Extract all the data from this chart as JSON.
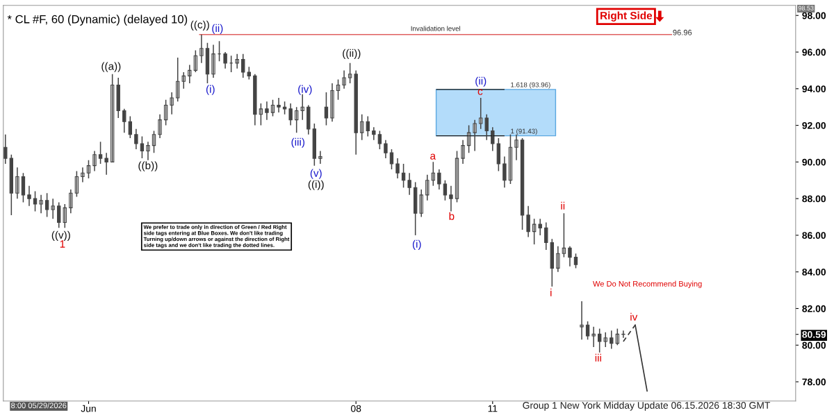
{
  "chart_data": {
    "type": "candlestick",
    "title": "* CL #F, 60 (Dynamic) (delayed 10)",
    "color": "#444444",
    "categories": [
      null,
      null,
      null,
      null,
      null,
      null,
      null,
      null,
      null,
      null,
      null,
      null,
      null,
      null,
      "Jun",
      null,
      null,
      null,
      null,
      null,
      null,
      null,
      null,
      null,
      null,
      null,
      null,
      null,
      null,
      null,
      null,
      null,
      null,
      null,
      null,
      null,
      null,
      null,
      null,
      null,
      null,
      null,
      null,
      null,
      null,
      null,
      null,
      null,
      null,
      null,
      null,
      null,
      null,
      null,
      null,
      null,
      null,
      null,
      null,
      "08",
      null,
      null,
      null,
      null,
      null,
      null,
      null,
      null,
      null,
      null,
      null,
      null,
      null,
      null,
      null,
      null,
      null,
      null,
      null,
      null,
      null,
      null,
      "11",
      null,
      null,
      null,
      null,
      null,
      null,
      null,
      null,
      null,
      null,
      null,
      null,
      null,
      null,
      null,
      null,
      null,
      null,
      null,
      null,
      null,
      null,
      null,
      null,
      null,
      null,
      null,
      null,
      null,
      null,
      null,
      null,
      null,
      null,
      null,
      null,
      null,
      null,
      null,
      null,
      null,
      null,
      null,
      null,
      null,
      null,
      null,
      null,
      null,
      null,
      null
    ],
    "ohlc": [
      [
        90.8,
        91.5,
        89.9,
        90.2
      ],
      [
        90.2,
        90.4,
        87.1,
        88.3
      ],
      [
        88.3,
        89.7,
        88.0,
        89.2
      ],
      [
        89.2,
        89.4,
        87.8,
        88.2
      ],
      [
        88.2,
        88.7,
        87.6,
        88.0
      ],
      [
        88.0,
        88.4,
        87.3,
        87.7
      ],
      [
        87.7,
        88.2,
        87.2,
        87.9
      ],
      [
        87.9,
        88.3,
        87.0,
        87.4
      ],
      [
        87.4,
        88.0,
        86.9,
        87.6
      ],
      [
        87.6,
        87.8,
        86.4,
        86.7
      ],
      [
        86.7,
        87.7,
        86.4,
        87.5
      ],
      [
        87.5,
        88.5,
        87.2,
        88.3
      ],
      [
        88.3,
        89.5,
        88.1,
        89.2
      ],
      [
        89.2,
        89.7,
        88.9,
        89.4
      ],
      [
        89.4,
        90.1,
        89.1,
        89.8
      ],
      [
        89.8,
        90.6,
        89.5,
        90.4
      ],
      [
        90.4,
        91.1,
        89.9,
        90.2
      ],
      [
        90.2,
        90.5,
        89.3,
        90.0
      ],
      [
        90.0,
        94.8,
        90.0,
        94.2
      ],
      [
        94.2,
        94.6,
        92.4,
        92.8
      ],
      [
        92.8,
        92.9,
        91.6,
        92.2
      ],
      [
        92.2,
        92.5,
        91.3,
        91.5
      ],
      [
        91.5,
        91.8,
        90.7,
        91.0
      ],
      [
        91.0,
        91.4,
        90.2,
        90.6
      ],
      [
        90.6,
        91.1,
        90.1,
        90.9
      ],
      [
        90.9,
        91.7,
        90.5,
        91.5
      ],
      [
        91.5,
        92.6,
        91.3,
        92.3
      ],
      [
        92.3,
        93.4,
        92.0,
        93.1
      ],
      [
        93.1,
        93.8,
        92.6,
        93.5
      ],
      [
        93.5,
        95.7,
        93.3,
        94.4
      ],
      [
        94.4,
        94.9,
        94.0,
        94.7
      ],
      [
        94.7,
        95.3,
        94.3,
        95.0
      ],
      [
        95.0,
        96.1,
        94.9,
        95.8
      ],
      [
        95.8,
        96.96,
        95.4,
        96.2
      ],
      [
        96.2,
        96.5,
        94.3,
        94.8
      ],
      [
        94.8,
        96.4,
        94.6,
        95.9
      ],
      [
        95.9,
        96.6,
        95.5,
        95.9
      ],
      [
        95.9,
        96.0,
        95.1,
        95.4
      ],
      [
        95.4,
        95.8,
        94.9,
        95.4
      ],
      [
        95.4,
        95.9,
        95.1,
        95.6
      ],
      [
        95.6,
        95.9,
        94.6,
        94.9
      ],
      [
        94.9,
        95.2,
        94.5,
        94.7
      ],
      [
        94.7,
        94.8,
        92.0,
        92.6
      ],
      [
        92.6,
        93.2,
        92.0,
        92.9
      ],
      [
        92.9,
        93.3,
        92.3,
        92.7
      ],
      [
        92.7,
        93.4,
        92.5,
        93.1
      ],
      [
        93.1,
        93.5,
        92.7,
        93.0
      ],
      [
        93.0,
        93.3,
        92.6,
        92.9
      ],
      [
        92.9,
        93.2,
        92.0,
        92.3
      ],
      [
        92.3,
        93.0,
        91.6,
        92.8
      ],
      [
        92.8,
        93.7,
        92.3,
        93.0
      ],
      [
        93.0,
        93.1,
        91.5,
        91.8
      ],
      [
        91.8,
        92.1,
        89.8,
        90.2
      ],
      [
        90.2,
        90.6,
        89.9,
        90.3
      ],
      [
        93.0,
        93.8,
        92.0,
        92.4
      ],
      [
        92.4,
        94.3,
        92.2,
        93.9
      ],
      [
        93.9,
        94.5,
        93.4,
        94.2
      ],
      [
        94.2,
        95.0,
        94.0,
        94.6
      ],
      [
        94.6,
        95.4,
        94.3,
        94.8
      ],
      [
        94.8,
        95.0,
        90.4,
        91.6
      ],
      [
        91.6,
        92.6,
        91.2,
        92.2
      ],
      [
        92.2,
        92.5,
        91.4,
        91.7
      ],
      [
        91.7,
        91.9,
        91.2,
        91.5
      ],
      [
        91.5,
        91.7,
        90.7,
        91.0
      ],
      [
        91.0,
        91.2,
        90.2,
        90.5
      ],
      [
        90.5,
        90.7,
        89.6,
        89.9
      ],
      [
        89.9,
        90.2,
        89.1,
        89.4
      ],
      [
        89.4,
        89.9,
        88.6,
        89.0
      ],
      [
        89.0,
        89.4,
        88.2,
        88.6
      ],
      [
        88.6,
        88.9,
        86.0,
        87.2
      ],
      [
        87.2,
        88.5,
        87.0,
        88.2
      ],
      [
        88.2,
        89.3,
        87.9,
        89.0
      ],
      [
        89.0,
        90.0,
        88.7,
        89.4
      ],
      [
        89.4,
        89.6,
        88.5,
        88.8
      ],
      [
        88.8,
        89.0,
        87.9,
        88.2
      ],
      [
        88.2,
        88.7,
        87.3,
        88.0
      ],
      [
        88.0,
        90.6,
        87.8,
        90.2
      ],
      [
        90.2,
        91.2,
        89.9,
        90.9
      ],
      [
        90.9,
        92.0,
        90.5,
        91.6
      ],
      [
        91.6,
        92.3,
        90.6,
        92.1
      ],
      [
        92.1,
        93.5,
        91.8,
        92.4
      ],
      [
        92.4,
        92.6,
        91.2,
        91.7
      ],
      [
        91.7,
        91.9,
        90.6,
        91.0
      ],
      [
        91.0,
        91.3,
        89.5,
        89.9
      ],
      [
        89.9,
        90.3,
        88.6,
        89.0
      ],
      [
        89.0,
        91.5,
        88.8,
        90.8
      ],
      [
        90.8,
        91.5,
        90.1,
        91.2
      ],
      [
        91.2,
        91.3,
        86.3,
        87.1
      ],
      [
        87.1,
        87.6,
        85.9,
        86.2
      ],
      [
        86.2,
        86.9,
        85.5,
        86.6
      ],
      [
        86.6,
        86.9,
        86.0,
        86.4
      ],
      [
        86.4,
        86.7,
        85.2,
        85.6
      ],
      [
        85.6,
        85.8,
        83.2,
        84.2
      ],
      [
        84.2,
        85.4,
        84.0,
        85.0
      ],
      [
        85.0,
        87.2,
        84.8,
        85.3
      ],
      [
        85.3,
        85.4,
        84.3,
        84.8
      ],
      [
        84.8,
        85.0,
        84.2,
        84.4
      ],
      [
        81.0,
        82.4,
        80.3,
        81.1
      ],
      [
        81.1,
        81.3,
        80.3,
        80.5
      ],
      [
        80.5,
        81.0,
        79.9,
        80.6
      ],
      [
        80.6,
        80.9,
        79.6,
        80.2
      ],
      [
        80.2,
        80.7,
        79.9,
        80.4
      ],
      [
        80.4,
        80.8,
        79.8,
        80.1
      ],
      [
        80.1,
        80.9,
        80.0,
        80.6
      ],
      [
        80.6,
        80.8,
        80.4,
        80.59
      ],
      null,
      null,
      null,
      null,
      null,
      null,
      null,
      null,
      null,
      null,
      null,
      null,
      null,
      null,
      null,
      null,
      null,
      null,
      null,
      null,
      null,
      null,
      null,
      null,
      null,
      null,
      null,
      null,
      null
    ],
    "series": [
      {
        "type": "line",
        "color": "#333333",
        "line_style": "dashed",
        "values": [
          null,
          null,
          null,
          null,
          null,
          null,
          null,
          null,
          null,
          null,
          null,
          null,
          null,
          null,
          null,
          null,
          null,
          null,
          null,
          null,
          null,
          null,
          null,
          null,
          null,
          null,
          null,
          null,
          null,
          null,
          null,
          null,
          null,
          null,
          null,
          null,
          null,
          null,
          null,
          null,
          null,
          null,
          null,
          null,
          null,
          null,
          null,
          null,
          null,
          null,
          null,
          null,
          null,
          null,
          null,
          null,
          null,
          null,
          null,
          null,
          null,
          null,
          null,
          null,
          null,
          null,
          null,
          null,
          null,
          null,
          null,
          null,
          null,
          null,
          null,
          null,
          null,
          null,
          null,
          null,
          null,
          null,
          null,
          null,
          null,
          null,
          null,
          null,
          null,
          null,
          null,
          null,
          null,
          null,
          null,
          null,
          null,
          null,
          null,
          null,
          null,
          null,
          null,
          null,
          80.2,
          null,
          81.1,
          null,
          null,
          null,
          null,
          null,
          null,
          null,
          null,
          null,
          null,
          null,
          null,
          null,
          null,
          null,
          null,
          null,
          null,
          null,
          null,
          null,
          null,
          null,
          null,
          null,
          null,
          null
        ]
      },
      {
        "type": "line",
        "color": "#333333",
        "line_style": "solid",
        "values": [
          null,
          null,
          null,
          null,
          null,
          null,
          null,
          null,
          null,
          null,
          null,
          null,
          null,
          null,
          null,
          null,
          null,
          null,
          null,
          null,
          null,
          null,
          null,
          null,
          null,
          null,
          null,
          null,
          null,
          null,
          null,
          null,
          null,
          null,
          null,
          null,
          null,
          null,
          null,
          null,
          null,
          null,
          null,
          null,
          null,
          null,
          null,
          null,
          null,
          null,
          null,
          null,
          null,
          null,
          null,
          null,
          null,
          null,
          null,
          null,
          null,
          null,
          null,
          null,
          null,
          null,
          null,
          null,
          null,
          null,
          null,
          null,
          null,
          null,
          null,
          null,
          null,
          null,
          null,
          null,
          null,
          null,
          null,
          null,
          null,
          null,
          null,
          null,
          null,
          null,
          null,
          null,
          null,
          null,
          null,
          null,
          null,
          null,
          null,
          null,
          null,
          null,
          null,
          null,
          null,
          null,
          81.1,
          null,
          77.5,
          null,
          null,
          null,
          null,
          null,
          null,
          null,
          null,
          null,
          null,
          null,
          null,
          null,
          null,
          null,
          null,
          null,
          null,
          null,
          null,
          null,
          null,
          null,
          null,
          null
        ]
      }
    ],
    "ylim": [
      76.95,
      98.55
    ],
    "yticks": [
      {
        "value": 78,
        "label": "78.00"
      },
      {
        "value": 80,
        "label": "80.00"
      },
      {
        "value": 80.59,
        "label": "80.59"
      },
      {
        "value": 82,
        "label": "82.00"
      },
      {
        "value": 84,
        "label": "84.00"
      },
      {
        "value": 86,
        "label": "86.00"
      },
      {
        "value": 88,
        "label": "88.00"
      },
      {
        "value": 90,
        "label": "90.00"
      },
      {
        "value": 92,
        "label": "92.00"
      },
      {
        "value": 94,
        "label": "94.00"
      },
      {
        "value": 96,
        "label": "96.00"
      },
      {
        "value": 98,
        "label": "98.00"
      }
    ],
    "ref_lines": [
      {
        "axis": "y",
        "value": 96.96,
        "label": "Invalidation level",
        "color": "#e06060"
      },
      {
        "axis": "y",
        "value": 93.96,
        "label": "1.618 (93.96)",
        "color": "#1a1a1a"
      },
      {
        "axis": "y",
        "value": 91.43,
        "label": "1 (91.43)",
        "color": "#1a1a1a"
      }
    ],
    "bands": [
      {
        "axis": "y",
        "from": 91.43,
        "to": 93.96,
        "color": "#b3dcfa"
      }
    ],
    "annotations": [
      "((v))",
      "1",
      "((a))",
      "((b))",
      "((c))",
      "(i)",
      "(ii)",
      "(iv)",
      "(iii)",
      "(v)",
      "((i))",
      "((ii))",
      "(i)",
      "a",
      "b",
      "(ii)",
      "c",
      "ii",
      "i",
      "iii",
      "iv",
      "We prefer to trade only in direction of Green / Red Right\nside tags entering at Blue Boxes. We don't like trading\nTurning up/down arrows or against the direction of Right\nside tags and we don't like trading the dotted lines.",
      "We Do Not Recommend Buying",
      "Right Side",
      "8:00 05/29/2026",
      "Group 1 New York Midday Update 06.15.2026 18:30 GMT",
      "96.96",
      "98.53"
    ]
  }
}
